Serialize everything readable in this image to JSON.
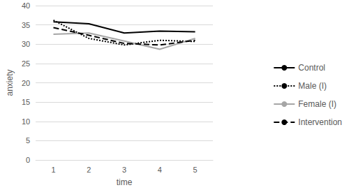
{
  "chart_data": {
    "type": "line",
    "x_label": "time",
    "y_label": "anxiety",
    "categories": [
      "1",
      "2",
      "3",
      "4",
      "5"
    ],
    "series": [
      {
        "name": "Control",
        "color": "#000000",
        "line_style": "solid",
        "values": [
          35.8,
          35.3,
          32.9,
          33.4,
          33.2
        ]
      },
      {
        "name": "Male (I)",
        "color": "#000000",
        "line_style": "dotted",
        "values": [
          36.2,
          31.5,
          29.8,
          31.0,
          30.7
        ]
      },
      {
        "name": "Female (I)",
        "color": "#a6a6a6",
        "line_style": "solid",
        "values": [
          32.6,
          32.9,
          30.8,
          28.7,
          31.5
        ]
      },
      {
        "name": "Intervention",
        "color": "#000000",
        "line_style": "dashed",
        "values": [
          34.3,
          32.3,
          30.2,
          29.8,
          31.0
        ]
      }
    ],
    "ylim": [
      0,
      40
    ],
    "yticks": [
      0,
      5,
      10,
      15,
      20,
      25,
      30,
      35,
      40
    ],
    "grid": true,
    "legend": "right",
    "marker": "none"
  }
}
